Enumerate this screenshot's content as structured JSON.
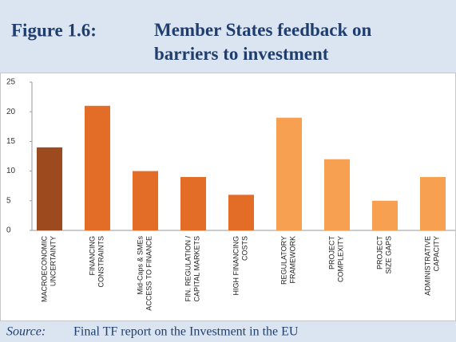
{
  "figure_label": "Figure 1.6:",
  "source_label": "Source:",
  "source": "Final TF report on the Investment in the EU",
  "chart_data": {
    "type": "bar",
    "title": "Member States feedback on\nbarriers to investment",
    "categories": [
      "MACROECONOMIC\nUNCERTAINTY",
      "FINANCING\nCONSTRAINTS",
      "Mid-Caps & SMEs\nACCESS TO FINANCE",
      "FIN. REGULATION /\nCAPITAL MARKETS",
      "HIGH FINANCING\nCOSTS",
      "REGULATORY\nFRAMEWORK",
      "PROJECT\nCOMPLEXITY",
      "PROJECT\nSIZE GAPS",
      "ADMINISTRATIVE\nCAPACITY"
    ],
    "values": [
      14,
      21,
      10,
      9,
      6,
      19,
      12,
      5,
      9
    ],
    "colors": [
      "#9c4a1e",
      "#e36c26",
      "#e36c26",
      "#e36c26",
      "#e36c26",
      "#f7a051",
      "#f7a051",
      "#f7a051",
      "#f7a051"
    ],
    "ylim": [
      0,
      25
    ],
    "yticks": [
      0,
      5,
      10,
      15,
      20,
      25
    ],
    "grid": false
  }
}
